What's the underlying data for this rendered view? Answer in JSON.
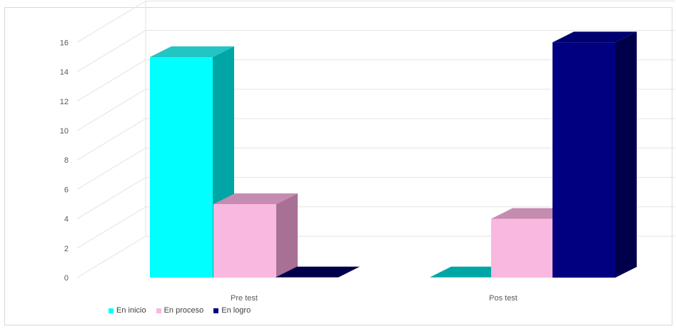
{
  "chart_data": {
    "type": "bar",
    "categories": [
      "Pre test",
      "Pos test"
    ],
    "series": [
      {
        "name": "En inicio",
        "values": [
          15,
          0
        ],
        "color": "#00FFFF",
        "side_color": "#00A5A5",
        "top_color": "#22C4C4"
      },
      {
        "name": "En proceso",
        "values": [
          5,
          4
        ],
        "color": "#F9B8E0",
        "side_color": "#A87094",
        "top_color": "#C58CB0"
      },
      {
        "name": "En logro",
        "values": [
          0,
          16
        ],
        "color": "#000080",
        "side_color": "#00004A",
        "top_color": "#000070"
      }
    ],
    "ylim": [
      0,
      16
    ],
    "yticks": [
      "0",
      "2",
      "4",
      "6",
      "8",
      "10",
      "12",
      "14",
      "16"
    ],
    "grid": true,
    "legend_position": "bottom-left",
    "style": "3d-clustered-column"
  }
}
